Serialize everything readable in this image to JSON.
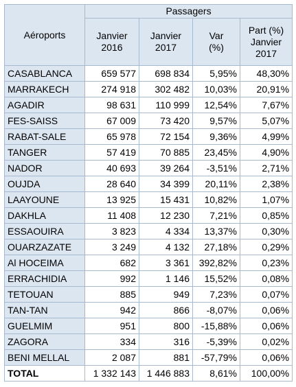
{
  "table": {
    "header": {
      "row_label": "Aéroports",
      "group": "Passagers",
      "columns": [
        [
          "Janvier",
          "2016"
        ],
        [
          "Janvier",
          "2017"
        ],
        [
          "Var",
          "(%)"
        ],
        [
          "Part (%)",
          "Janvier",
          "2017"
        ]
      ]
    },
    "rows": [
      [
        "CASABLANCA",
        "659 577",
        "698 834",
        "5,95%",
        "48,30%"
      ],
      [
        "MARRAKECH",
        "274 918",
        "302 482",
        "10,03%",
        "20,91%"
      ],
      [
        "AGADIR",
        "98 631",
        "110 999",
        "12,54%",
        "7,67%"
      ],
      [
        "FES-SAISS",
        "67 009",
        "73 420",
        "9,57%",
        "5,07%"
      ],
      [
        "RABAT-SALE",
        "65 978",
        "72 154",
        "9,36%",
        "4,99%"
      ],
      [
        "TANGER",
        "57 419",
        "70 885",
        "23,45%",
        "4,90%"
      ],
      [
        "NADOR",
        "40 693",
        "39 264",
        "-3,51%",
        "2,71%"
      ],
      [
        "OUJDA",
        "28 640",
        "34 399",
        "20,11%",
        "2,38%"
      ],
      [
        "LAAYOUNE",
        "13 925",
        "15 431",
        "10,82%",
        "1,07%"
      ],
      [
        "DAKHLA",
        "11 408",
        "12 230",
        "7,21%",
        "0,85%"
      ],
      [
        "ESSAOUIRA",
        "3 823",
        "4 334",
        "13,37%",
        "0,30%"
      ],
      [
        "OUARZAZATE",
        "3 249",
        "4 132",
        "27,18%",
        "0,29%"
      ],
      [
        "Al HOCEIMA",
        "682",
        "3 361",
        "392,82%",
        "0,23%"
      ],
      [
        "ERRACHIDIA",
        "992",
        "1 146",
        "15,52%",
        "0,08%"
      ],
      [
        "TETOUAN",
        "885",
        "949",
        "7,23%",
        "0,07%"
      ],
      [
        "TAN-TAN",
        "942",
        "866",
        "-8,07%",
        "0,06%"
      ],
      [
        "GUELMIM",
        "951",
        "800",
        "-15,88%",
        "0,06%"
      ],
      [
        "ZAGORA",
        "334",
        "316",
        "-5,39%",
        "0,02%"
      ],
      [
        "BENI MELLAL",
        "2 087",
        "881",
        "-57,79%",
        "0,06%"
      ]
    ],
    "total": [
      "TOTAL",
      "1 332 143",
      "1 446 883",
      "8,61%",
      "100,00%"
    ]
  }
}
